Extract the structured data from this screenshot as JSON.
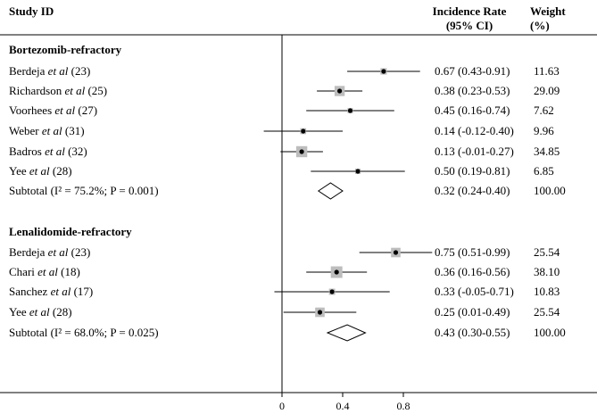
{
  "header": {
    "study_label": "Study ID",
    "rate_label_1": "Incidence Rate",
    "rate_label_2": "(95% CI)",
    "weight_label_1": "Weight",
    "weight_label_2": "(%)"
  },
  "chart_data": {
    "type": "forest",
    "xlim": [
      -0.2,
      1.0
    ],
    "xticks": [
      {
        "value": 0,
        "label": "0"
      },
      {
        "value": 0.4,
        "label": "0.4"
      },
      {
        "value": 0.8,
        "label": "0.8"
      }
    ],
    "reference_line": 0,
    "groups": [
      {
        "name": "Bortezomib-refractory",
        "studies": [
          {
            "author": "Berdeja",
            "etal": "et al",
            "ref": "(23)",
            "est": 0.67,
            "lo": 0.43,
            "hi": 0.91,
            "ci_text": "0.67 (0.43-0.91)",
            "weight": "11.63",
            "w": 11.63
          },
          {
            "author": "Richardson",
            "etal": "et al",
            "ref": "(25)",
            "est": 0.38,
            "lo": 0.23,
            "hi": 0.53,
            "ci_text": "0.38 (0.23-0.53)",
            "weight": "29.09",
            "w": 29.09
          },
          {
            "author": "Voorhees",
            "etal": "et al",
            "ref": "(27)",
            "est": 0.45,
            "lo": 0.16,
            "hi": 0.74,
            "ci_text": "0.45 (0.16-0.74)",
            "weight": "7.62",
            "w": 7.62
          },
          {
            "author": "Weber",
            "etal": "et al",
            "ref": "(31)",
            "est": 0.14,
            "lo": -0.12,
            "hi": 0.4,
            "ci_text": "0.14 (-0.12-0.40)",
            "weight": "9.96",
            "w": 9.96
          },
          {
            "author": "Badros",
            "etal": "et al",
            "ref": "(32)",
            "est": 0.13,
            "lo": -0.01,
            "hi": 0.27,
            "ci_text": "0.13 (-0.01-0.27)",
            "weight": "34.85",
            "w": 34.85
          },
          {
            "author": "Yee",
            "etal": "et al",
            "ref": "(28)",
            "est": 0.5,
            "lo": 0.19,
            "hi": 0.81,
            "ci_text": "0.50 (0.19-0.81)",
            "weight": "6.85",
            "w": 6.85
          }
        ],
        "subtotal": {
          "label": "Subtotal  (I² = 75.2%; P = 0.001)",
          "est": 0.32,
          "lo": 0.24,
          "hi": 0.4,
          "ci_text": "0.32 (0.24-0.40)",
          "weight": "100.00"
        }
      },
      {
        "name": "Lenalidomide-refractory",
        "studies": [
          {
            "author": "Berdeja",
            "etal": "et al",
            "ref": "(23)",
            "est": 0.75,
            "lo": 0.51,
            "hi": 0.99,
            "ci_text": "0.75 (0.51-0.99)",
            "weight": "25.54",
            "w": 25.54
          },
          {
            "author": "Chari",
            "etal": "et al",
            "ref": "(18)",
            "est": 0.36,
            "lo": 0.16,
            "hi": 0.56,
            "ci_text": "0.36 (0.16-0.56)",
            "weight": "38.10",
            "w": 38.1
          },
          {
            "author": "Sanchez",
            "etal": "et al",
            "ref": "(17)",
            "est": 0.33,
            "lo": -0.05,
            "hi": 0.71,
            "ci_text": "0.33 (-0.05-0.71)",
            "weight": "10.83",
            "w": 10.83
          },
          {
            "author": "Yee",
            "etal": "et al",
            "ref": "(28)",
            "est": 0.25,
            "lo": 0.01,
            "hi": 0.49,
            "ci_text": "0.25 (0.01-0.49)",
            "weight": "25.54",
            "w": 25.54
          }
        ],
        "subtotal": {
          "label": "Subtotal  (I² = 68.0%; P = 0.025)",
          "est": 0.43,
          "lo": 0.3,
          "hi": 0.55,
          "ci_text": "0.43 (0.30-0.55)",
          "weight": "100.00"
        }
      }
    ]
  }
}
